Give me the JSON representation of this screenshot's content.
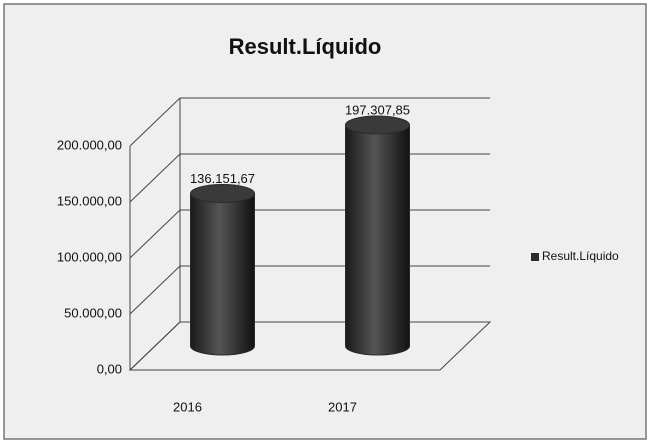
{
  "chart_data": {
    "type": "bar3d",
    "title": "Result.Líquido",
    "categories": [
      "2016",
      "2017"
    ],
    "series": [
      {
        "name": "Result.Líquido",
        "color": "#2b2b2b",
        "values": [
          136151.67,
          197307.85
        ],
        "value_labels": [
          "136.151,67",
          "197.307,85"
        ]
      }
    ],
    "ylim": [
      0,
      200000
    ],
    "yticks": [
      {
        "value": 0,
        "label": "0,00"
      },
      {
        "value": 50000,
        "label": "50.000,00"
      },
      {
        "value": 100000,
        "label": "100.000,00"
      },
      {
        "value": 150000,
        "label": "150.000,00"
      },
      {
        "value": 200000,
        "label": "200.000,00"
      }
    ],
    "grid": true,
    "legend": "right"
  }
}
